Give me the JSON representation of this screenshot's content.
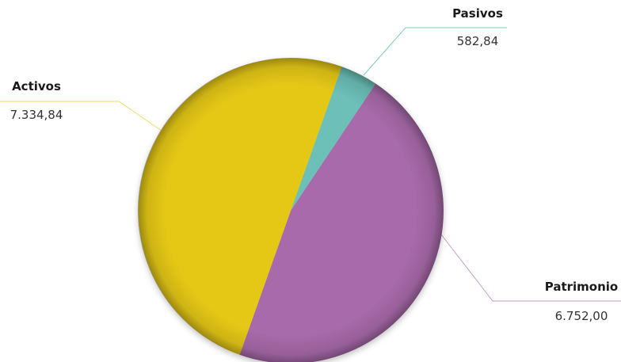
{
  "chart_data": {
    "type": "pie",
    "slices": [
      {
        "label": "Activos",
        "value_text": "7.334,84",
        "value": 7334.84,
        "color": "#e5c813",
        "leader_color": "#f2d96b"
      },
      {
        "label": "Pasivos",
        "value_text": "582,84",
        "value": 582.84,
        "color": "#6cc0b8",
        "leader_color": "#7cc7c1"
      },
      {
        "label": "Patrimonio",
        "value_text": "6.752,00",
        "value": 6752.0,
        "color": "#a86aaa",
        "leader_color": "#c49ac6"
      }
    ],
    "legend": "none",
    "data_labels": "outside with leader lines"
  }
}
